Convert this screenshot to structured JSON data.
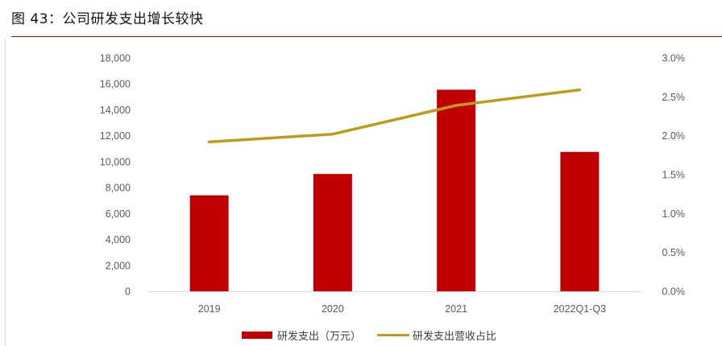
{
  "figure": {
    "title": "图 43：公司研发支出增长较快"
  },
  "chart_data": {
    "type": "bar",
    "categories": [
      "2019",
      "2020",
      "2021",
      "2022Q1-Q3"
    ],
    "series": [
      {
        "name": "研发支出（万元）",
        "type": "bar",
        "axis": "left",
        "values": [
          7400,
          9050,
          15550,
          10750
        ]
      },
      {
        "name": "研发支出营收占比",
        "type": "line",
        "axis": "right",
        "values": [
          1.92,
          2.02,
          2.39,
          2.59
        ]
      }
    ],
    "y_left": {
      "min": 0,
      "max": 18000,
      "step": 2000,
      "ticks": [
        "0",
        "2,000",
        "4,000",
        "6,000",
        "8,000",
        "10,000",
        "12,000",
        "14,000",
        "16,000",
        "18,000"
      ]
    },
    "y_right": {
      "min": 0,
      "max": 3.0,
      "step": 0.5,
      "ticks": [
        "0.0%",
        "0.5%",
        "1.0%",
        "1.5%",
        "2.0%",
        "2.5%",
        "3.0%"
      ]
    },
    "grid": false,
    "legend_position": "bottom",
    "colors": {
      "bar": "#c00000",
      "line": "#c09b18",
      "accent": "#c00000"
    }
  }
}
